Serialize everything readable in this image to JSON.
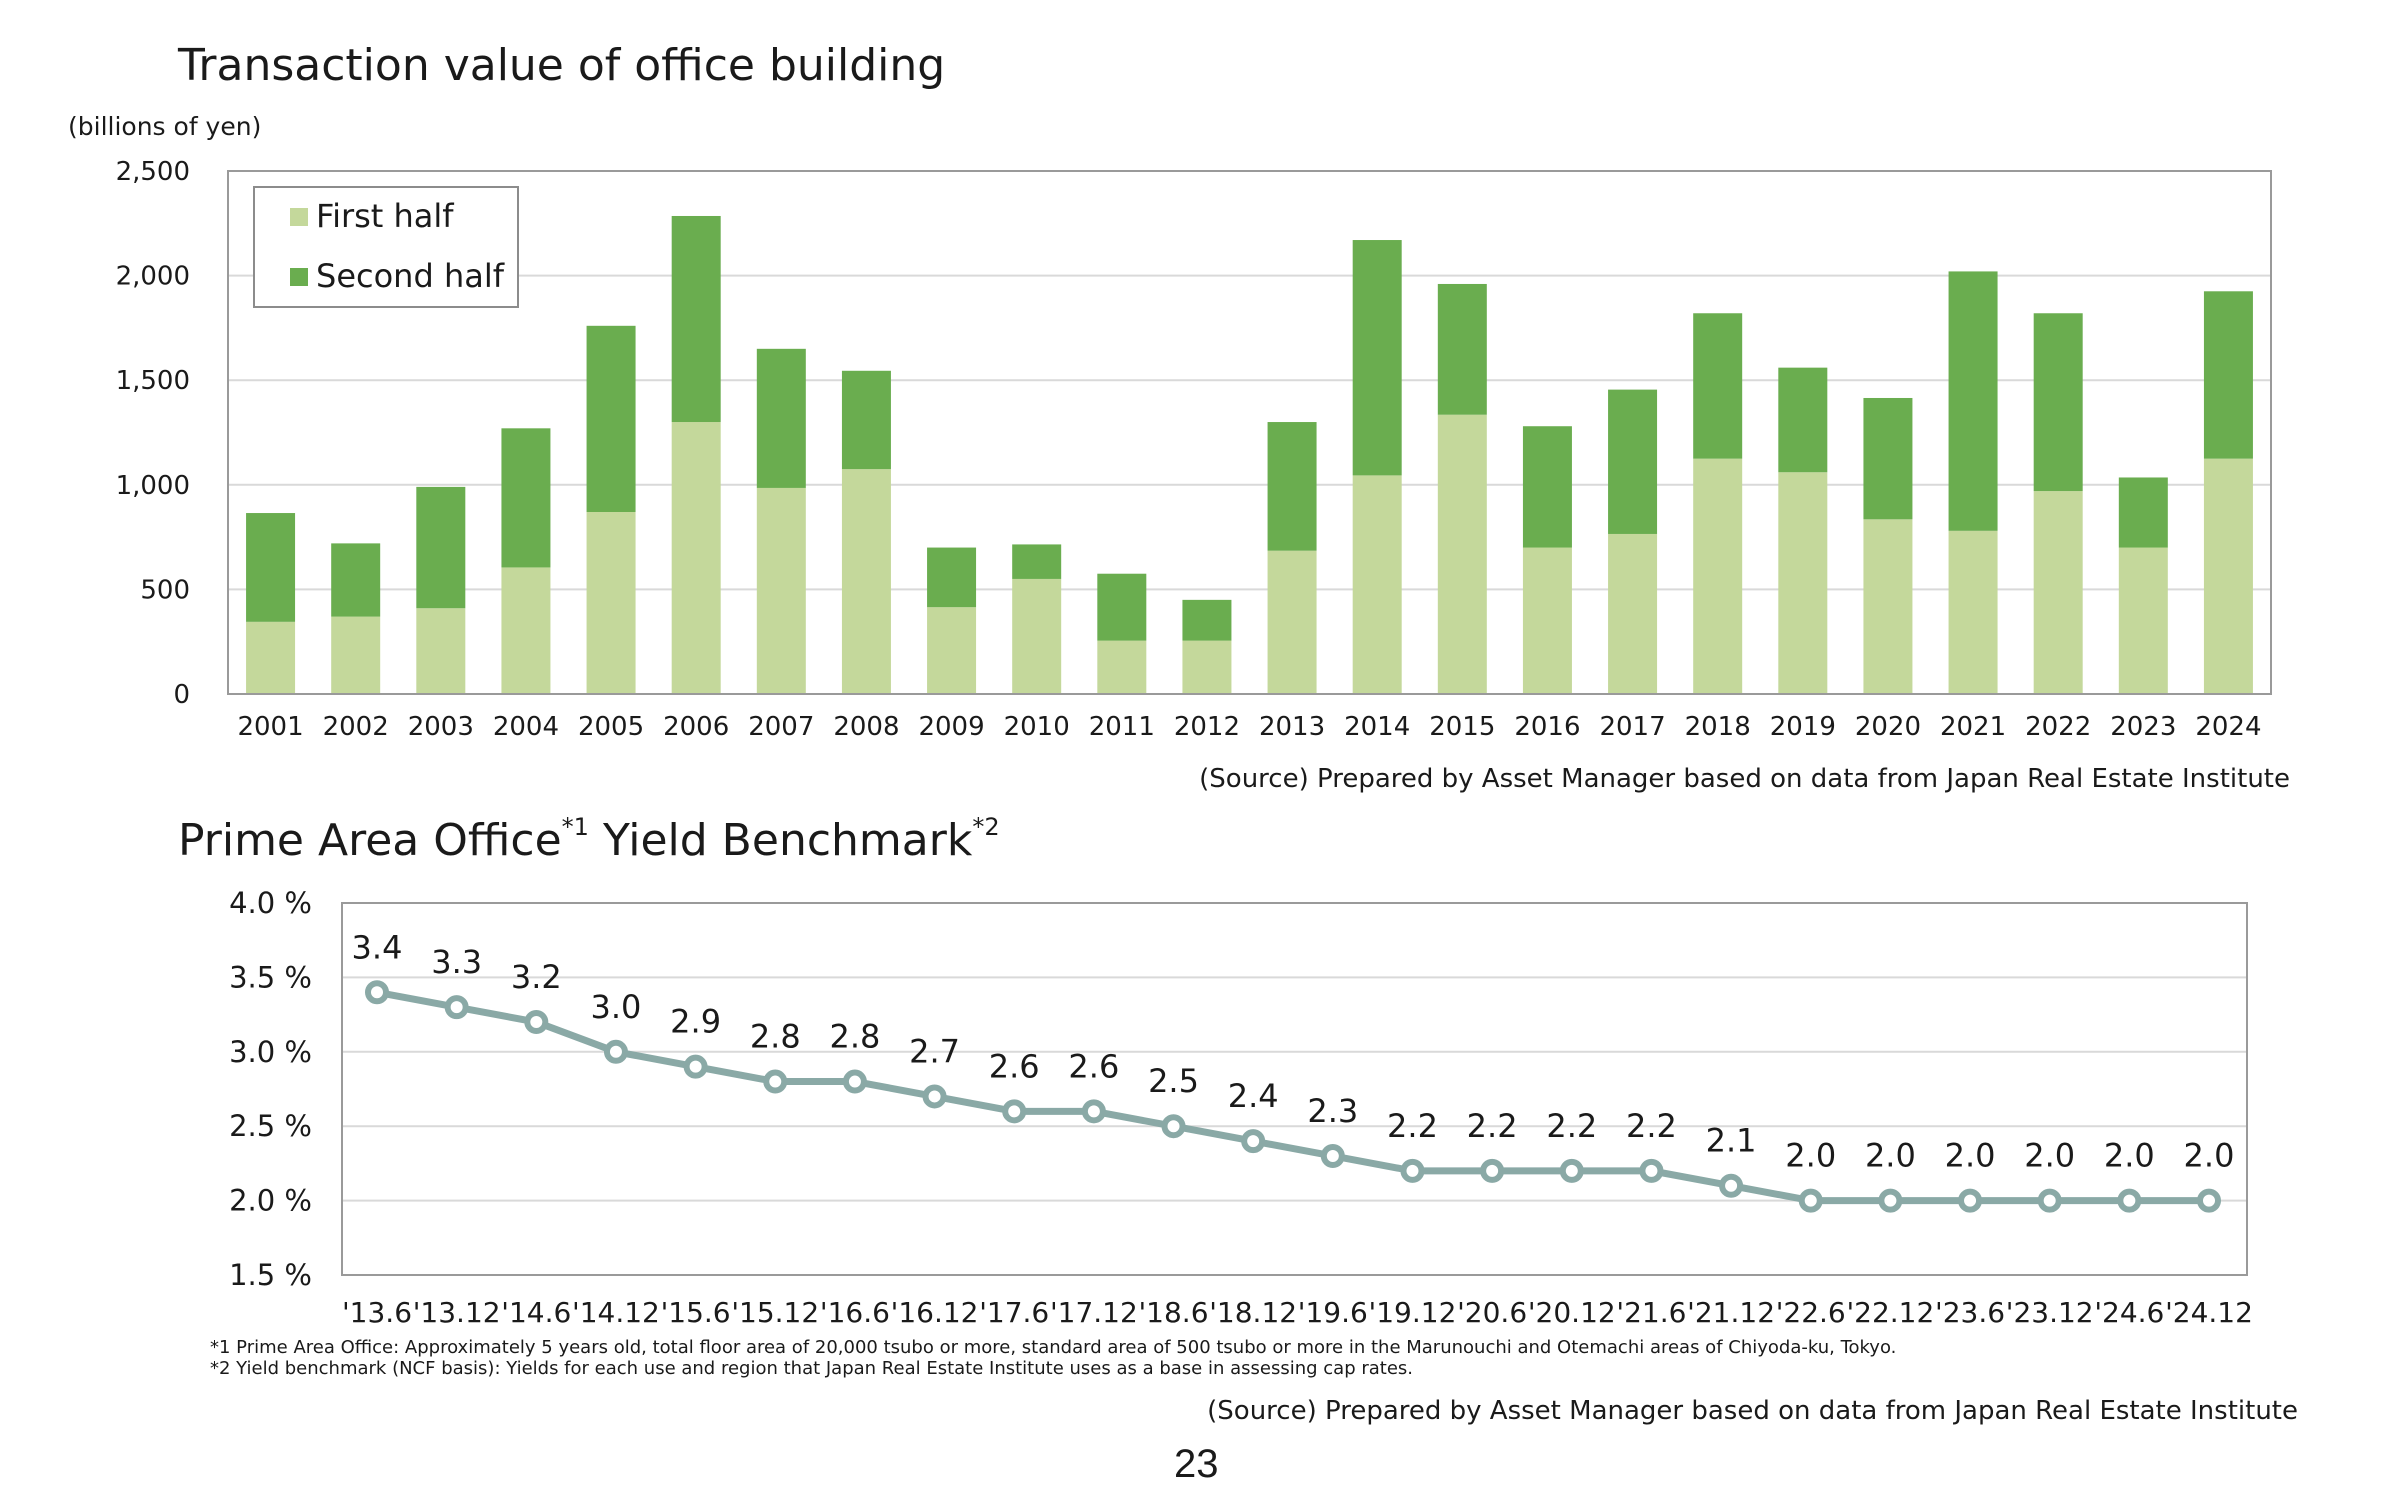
{
  "chart_data": [
    {
      "type": "bar",
      "stacked": true,
      "title": "Transaction value of office building",
      "unit_label": "(billions of yen)",
      "categories": [
        "2001",
        "2002",
        "2003",
        "2004",
        "2005",
        "2006",
        "2007",
        "2008",
        "2009",
        "2010",
        "2011",
        "2012",
        "2013",
        "2014",
        "2015",
        "2016",
        "2017",
        "2018",
        "2019",
        "2020",
        "2021",
        "2022",
        "2023",
        "2024"
      ],
      "series": [
        {
          "name": "First half",
          "color": "#c4d89b",
          "values": [
            345,
            370,
            410,
            605,
            870,
            1300,
            985,
            1075,
            415,
            550,
            255,
            255,
            685,
            1045,
            1335,
            700,
            765,
            1125,
            1060,
            835,
            780,
            970,
            700,
            1125
          ]
        },
        {
          "name": "Second half",
          "color": "#6aad4f",
          "values": [
            520,
            350,
            580,
            665,
            890,
            985,
            665,
            470,
            285,
            165,
            320,
            195,
            615,
            1125,
            625,
            580,
            690,
            695,
            500,
            580,
            1240,
            850,
            335,
            800
          ]
        }
      ],
      "ylim": [
        0,
        2500
      ],
      "yticks": [
        "0",
        "500",
        "1,000",
        "1,500",
        "2,000",
        "2,500"
      ],
      "grid": true,
      "legend_position": "top-left",
      "source": "(Source) Prepared by Asset Manager based on data from Japan Real Estate Institute"
    },
    {
      "type": "line",
      "title": "Prime Area Office",
      "title_mark1": "*1",
      "title_rest": " Yield Benchmark",
      "title_mark2": "*2",
      "categories": [
        "'13.6",
        "'13.12",
        "'14.6",
        "'14.12",
        "'15.6",
        "'15.12",
        "'16.6",
        "'16.12",
        "'17.6",
        "'17.12",
        "'18.6",
        "'18.12",
        "'19.6",
        "'19.12",
        "'20.6",
        "'20.12",
        "'21.6",
        "'21.12",
        "'22.6",
        "'22.12",
        "'23.6",
        "'23.12",
        "'24.6",
        "'24.12"
      ],
      "values": [
        3.4,
        3.3,
        3.2,
        3.0,
        2.9,
        2.8,
        2.8,
        2.7,
        2.6,
        2.6,
        2.5,
        2.4,
        2.3,
        2.2,
        2.2,
        2.2,
        2.2,
        2.1,
        2.0,
        2.0,
        2.0,
        2.0,
        2.0,
        2.0
      ],
      "value_labels": [
        "3.4",
        "3.3",
        "3.2",
        "3.0",
        "2.9",
        "2.8",
        "2.8",
        "2.7",
        "2.6",
        "2.6",
        "2.5",
        "2.4",
        "2.3",
        "2.2",
        "2.2",
        "2.2",
        "2.2",
        "2.1",
        "2.0",
        "2.0",
        "2.0",
        "2.0",
        "2.0",
        "2.0"
      ],
      "ylim": [
        1.5,
        4.0
      ],
      "yticks": [
        "1.5 %",
        "2.0 %",
        "2.5 %",
        "3.0 %",
        "3.5 %",
        "4.0 %"
      ],
      "line_color": "#8aa9a6",
      "grid": true,
      "notes": [
        "*1 Prime Area Office: Approximately 5 years old, total floor area of 20,000 tsubo or more, standard area of 500 tsubo or more in the Marunouchi and Otemachi areas of Chiyoda-ku, Tokyo.",
        "*2 Yield benchmark (NCF basis): Yields for each use and region that Japan Real Estate Institute uses as a base in assessing cap rates."
      ],
      "source": "(Source) Prepared by Asset Manager based on data from Japan Real Estate Institute"
    }
  ],
  "page_number": "23"
}
